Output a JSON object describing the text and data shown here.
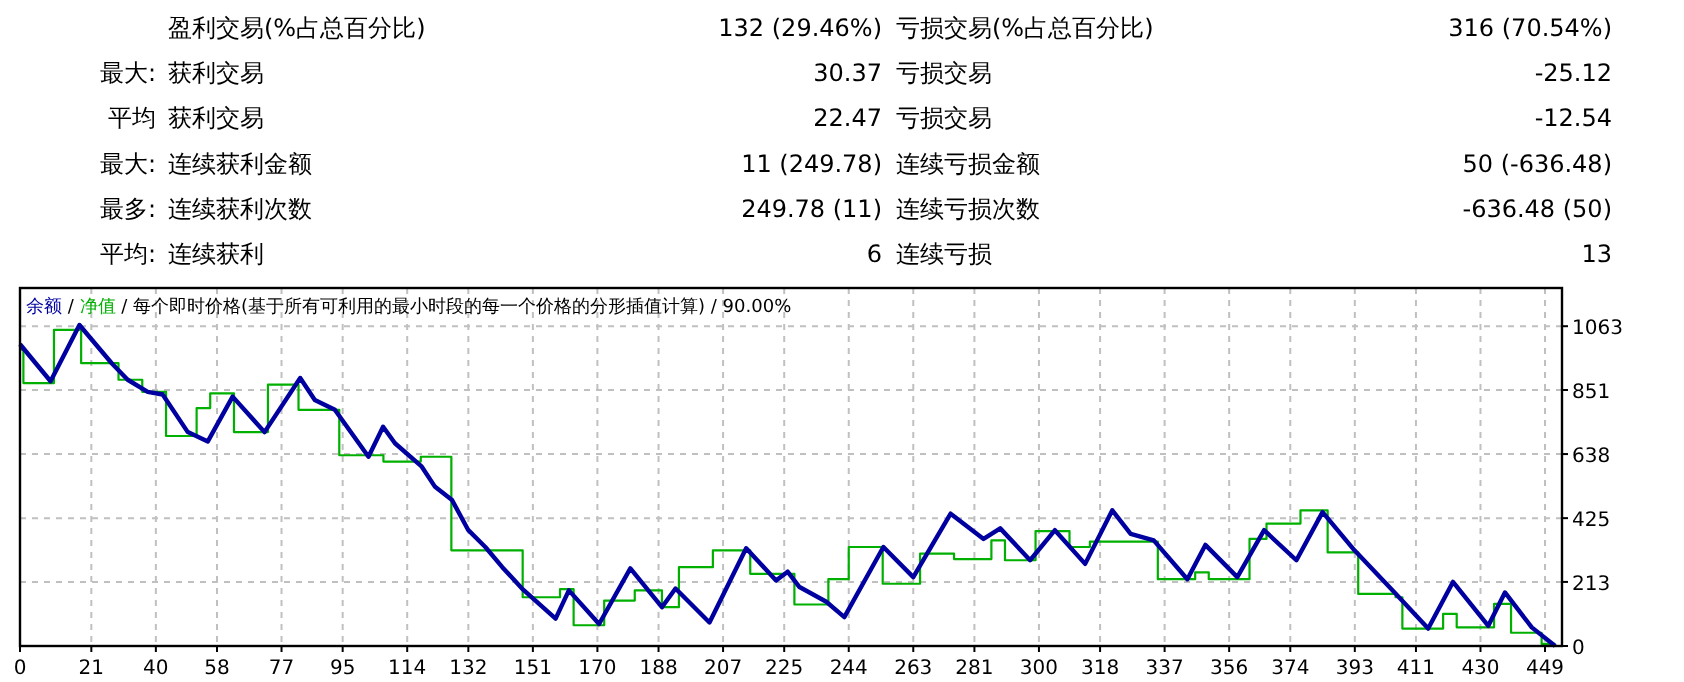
{
  "chart_data": [
    {
      "type": "other",
      "y_categories": [
        null,
        "最大:",
        "平均",
        "最大:",
        "最多:",
        "平均:"
      ],
      "cell_labels": [
        [
          "盈利交易(%占总百分比)",
          "132 (29.46%)",
          "亏损交易(%占总百分比)",
          "316 (70.54%)"
        ],
        [
          "获利交易",
          "30.37",
          "亏损交易",
          "-25.12"
        ],
        [
          "获利交易",
          "22.47",
          "亏损交易",
          "-12.54"
        ],
        [
          "连续获利金额",
          "11 (249.78)",
          "连续亏损金额",
          "50 (-636.48)"
        ],
        [
          "连续获利次数",
          "249.78 (11)",
          "连续亏损次数",
          "-636.48 (50)"
        ],
        [
          "连续获利",
          "6",
          "连续亏损",
          "13"
        ]
      ]
    },
    {
      "type": "line",
      "legend": "top left",
      "annotations": [
        "/",
        "/ 每个即时价格(基于所有可利用的最小时段的每一个价格的分形插值计算) / 90.00%"
      ],
      "xlim": [
        0,
        454
      ],
      "ylim": [
        0,
        1190
      ],
      "xticks": [
        0,
        21,
        40,
        58,
        77,
        95,
        114,
        132,
        151,
        170,
        188,
        207,
        225,
        244,
        263,
        281,
        300,
        318,
        337,
        356,
        374,
        393,
        411,
        430,
        449
      ],
      "yticks": [
        0,
        213,
        425,
        638,
        851,
        1063
      ],
      "grid": true,
      "series": [
        {
          "name": "余额",
          "color": "#0000a0",
          "x": [
            0,
            9,
            17.5,
            27,
            31.7,
            37.6,
            42,
            49.4,
            55.3,
            62.6,
            72,
            82.5,
            86.8,
            92.7,
            102.6,
            106.9,
            110.4,
            118.3,
            122.2,
            127.2,
            132,
            137,
            142,
            147.8,
            157.7,
            161.6,
            170.5,
            179.7,
            189,
            193,
            203,
            213.8,
            222.6,
            226,
            229.5,
            237.4,
            242.7,
            254.2,
            263,
            274,
            283.7,
            288.6,
            297.4,
            304.7,
            313.6,
            321.6,
            327,
            333.8,
            343.7,
            349,
            358.4,
            366.3,
            375.8,
            383.5,
            392.9,
            404.7,
            414.6,
            421.9,
            432.3,
            437.2,
            445.1,
            452
          ],
          "values": [
            1003,
            880,
            1067,
            940,
            885,
            845,
            836,
            711,
            680,
            829,
            711,
            891,
            818,
            785,
            629,
            729,
            674,
            596,
            529,
            485,
            385,
            329,
            262,
            191,
            91,
            185,
            73,
            258,
            129,
            191,
            78,
            325,
            218,
            247,
            196,
            147,
            96,
            329,
            229,
            440,
            356,
            391,
            285,
            385,
            273,
            451,
            373,
            351,
            222,
            336,
            229,
            385,
            285,
            445,
            318,
            178,
            58,
            213,
            67,
            178,
            62,
            0
          ]
        },
        {
          "name": "净值",
          "color": "#00b000",
          "type": "step",
          "x": [
            0,
            1,
            10,
            18,
            29,
            36,
            43,
            52,
            56,
            63,
            73,
            82,
            94,
            107,
            118,
            127,
            148,
            159,
            163,
            172,
            181,
            189,
            194,
            204,
            215,
            228,
            238,
            244,
            254,
            265,
            275,
            286,
            290,
            299,
            309,
            315,
            335,
            346,
            350,
            362,
            367,
            377,
            385,
            394,
            405,
            407,
            419,
            423,
            434,
            439,
            448,
            452
          ],
          "values": [
            985,
            874,
            1051,
            940,
            885,
            845,
            698,
            791,
            840,
            711,
            869,
            785,
            634,
            613,
            629,
            318,
            162,
            189,
            69,
            151,
            185,
            129,
            262,
            318,
            240,
            138,
            222,
            329,
            207,
            307,
            289,
            351,
            285,
            382,
            329,
            347,
            222,
            245,
            222,
            356,
            407,
            451,
            311,
            173,
            162,
            58,
            107,
            62,
            140,
            44,
            7,
            7
          ]
        }
      ]
    }
  ]
}
